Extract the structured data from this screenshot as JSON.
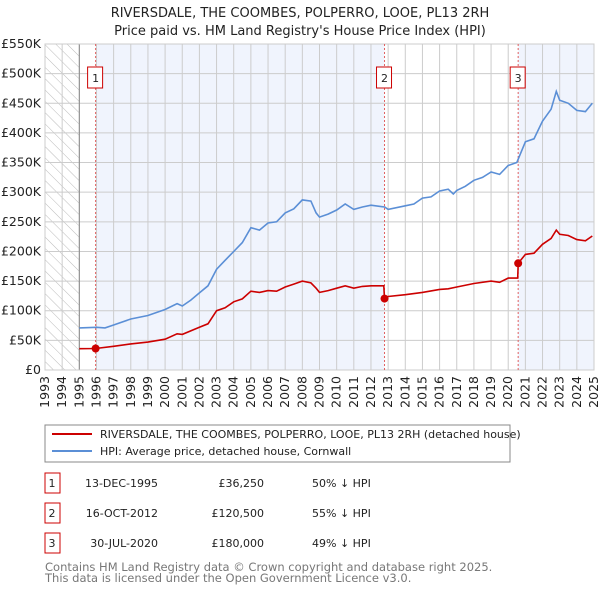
{
  "chart_data": {
    "type": "line",
    "title": "RIVERSDALE, THE COOMBES, POLPERRO, LOOE, PL13 2RH",
    "subtitle": "Price paid vs. HM Land Registry's House Price Index (HPI)",
    "xlim": [
      1993,
      2025
    ],
    "ylim": [
      0,
      550000
    ],
    "x_ticks": [
      "1993",
      "1994",
      "1995",
      "1996",
      "1997",
      "1998",
      "1999",
      "2000",
      "2001",
      "2002",
      "2003",
      "2004",
      "2005",
      "2006",
      "2007",
      "2008",
      "2009",
      "2010",
      "2011",
      "2012",
      "2013",
      "2014",
      "2015",
      "2016",
      "2017",
      "2018",
      "2019",
      "2020",
      "2021",
      "2022",
      "2023",
      "2024",
      "2025"
    ],
    "y_ticks": [
      {
        "value": 0,
        "label": "£0"
      },
      {
        "value": 50000,
        "label": "£50K"
      },
      {
        "value": 100000,
        "label": "£100K"
      },
      {
        "value": 150000,
        "label": "£150K"
      },
      {
        "value": 200000,
        "label": "£200K"
      },
      {
        "value": 250000,
        "label": "£250K"
      },
      {
        "value": 300000,
        "label": "£300K"
      },
      {
        "value": 350000,
        "label": "£350K"
      },
      {
        "value": 400000,
        "label": "£400K"
      },
      {
        "value": 450000,
        "label": "£450K"
      },
      {
        "value": 500000,
        "label": "£500K"
      },
      {
        "value": 550000,
        "label": "£550K"
      }
    ],
    "grid": true,
    "hatched_range": [
      1993,
      1995
    ],
    "series": [
      {
        "name": "RIVERSDALE, THE COOMBES, POLPERRO, LOOE, PL13 2RH (detached house)",
        "color": "#cc0000",
        "points": [
          [
            1995,
            36
          ],
          [
            1995.95,
            36.25
          ],
          [
            1997,
            40
          ],
          [
            1998,
            44
          ],
          [
            1999,
            47
          ],
          [
            2000,
            52
          ],
          [
            2000.7,
            61
          ],
          [
            2001,
            60
          ],
          [
            2002,
            72
          ],
          [
            2002.5,
            78
          ],
          [
            2003,
            100
          ],
          [
            2003.5,
            105
          ],
          [
            2004,
            115
          ],
          [
            2004.5,
            120
          ],
          [
            2005,
            133
          ],
          [
            2005.5,
            131
          ],
          [
            2006,
            134
          ],
          [
            2006.5,
            133
          ],
          [
            2007,
            140
          ],
          [
            2007.5,
            145
          ],
          [
            2008,
            150
          ],
          [
            2008.5,
            147
          ],
          [
            2008.8,
            138
          ],
          [
            2009,
            131
          ],
          [
            2009.5,
            134
          ],
          [
            2010,
            138
          ],
          [
            2010.5,
            142
          ],
          [
            2011,
            138
          ],
          [
            2011.5,
            141
          ],
          [
            2012,
            142
          ],
          [
            2012.75,
            142
          ],
          [
            2012.79,
            120.5
          ],
          [
            2013,
            124
          ],
          [
            2014,
            127
          ],
          [
            2015,
            131
          ],
          [
            2016,
            136
          ],
          [
            2016.5,
            137
          ],
          [
            2017,
            140
          ],
          [
            2018,
            146
          ],
          [
            2019,
            150
          ],
          [
            2019.5,
            148
          ],
          [
            2020,
            155
          ],
          [
            2020.55,
            155
          ],
          [
            2020.58,
            180
          ],
          [
            2021,
            195
          ],
          [
            2021.5,
            197
          ],
          [
            2022,
            212
          ],
          [
            2022.5,
            222
          ],
          [
            2022.8,
            236
          ],
          [
            2023,
            229
          ],
          [
            2023.5,
            227
          ],
          [
            2024,
            220
          ],
          [
            2024.5,
            218
          ],
          [
            2024.9,
            226
          ]
        ]
      },
      {
        "name": "HPI: Average price, detached house, Cornwall",
        "color": "#5b8fd6",
        "points": [
          [
            1995,
            71
          ],
          [
            1996,
            72
          ],
          [
            1996.5,
            71
          ],
          [
            1997,
            76
          ],
          [
            1998,
            86
          ],
          [
            1999,
            92
          ],
          [
            2000,
            102
          ],
          [
            2000.7,
            112
          ],
          [
            2001,
            108
          ],
          [
            2001.5,
            118
          ],
          [
            2002,
            130
          ],
          [
            2002.5,
            142
          ],
          [
            2003,
            170
          ],
          [
            2003.5,
            185
          ],
          [
            2004,
            200
          ],
          [
            2004.5,
            215
          ],
          [
            2005,
            240
          ],
          [
            2005.5,
            236
          ],
          [
            2006,
            248
          ],
          [
            2006.5,
            250
          ],
          [
            2007,
            265
          ],
          [
            2007.5,
            272
          ],
          [
            2008,
            287
          ],
          [
            2008.5,
            285
          ],
          [
            2008.8,
            265
          ],
          [
            2009,
            258
          ],
          [
            2009.5,
            263
          ],
          [
            2010,
            270
          ],
          [
            2010.5,
            280
          ],
          [
            2011,
            271
          ],
          [
            2011.5,
            275
          ],
          [
            2012,
            278
          ],
          [
            2012.8,
            275
          ],
          [
            2013,
            271
          ],
          [
            2014,
            277
          ],
          [
            2014.5,
            280
          ],
          [
            2015,
            290
          ],
          [
            2015.5,
            292
          ],
          [
            2016,
            302
          ],
          [
            2016.5,
            305
          ],
          [
            2016.8,
            297
          ],
          [
            2017,
            303
          ],
          [
            2017.5,
            310
          ],
          [
            2018,
            320
          ],
          [
            2018.5,
            325
          ],
          [
            2019,
            334
          ],
          [
            2019.5,
            330
          ],
          [
            2020,
            345
          ],
          [
            2020.5,
            350
          ],
          [
            2021,
            385
          ],
          [
            2021.5,
            390
          ],
          [
            2022,
            420
          ],
          [
            2022.5,
            440
          ],
          [
            2022.8,
            470
          ],
          [
            2023,
            455
          ],
          [
            2023.5,
            450
          ],
          [
            2024,
            438
          ],
          [
            2024.5,
            436
          ],
          [
            2024.9,
            450
          ]
        ]
      }
    ],
    "point_units": "thousands GBP",
    "sales": [
      {
        "id": "1",
        "x": 1995.95,
        "value": 36250,
        "date": "13-DEC-1995",
        "price": "£36,250",
        "hpi": "50% ↓ HPI"
      },
      {
        "id": "2",
        "x": 2012.79,
        "value": 120500,
        "date": "16-OCT-2012",
        "price": "£120,500",
        "hpi": "55% ↓ HPI"
      },
      {
        "id": "3",
        "x": 2020.58,
        "value": 180000,
        "date": "30-JUL-2020",
        "price": "£180,000",
        "hpi": "49% ↓ HPI"
      }
    ],
    "legend_placement": "below"
  },
  "footer": {
    "line1": "Contains HM Land Registry data © Crown copyright and database right 2025.",
    "line2": "This data is licensed under the Open Government Licence v3.0."
  }
}
